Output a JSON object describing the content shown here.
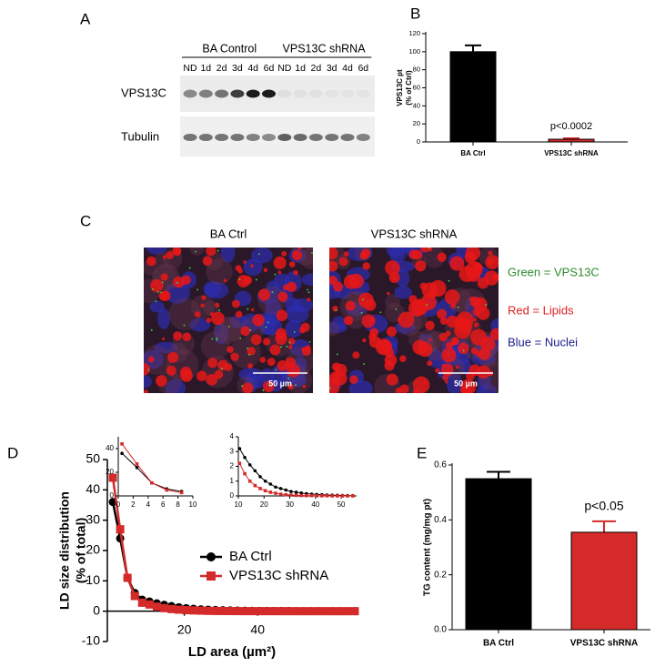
{
  "panel_labels": [
    "A",
    "B",
    "C",
    "D",
    "E"
  ],
  "blot": {
    "groups": [
      {
        "label": "BA Control",
        "lanes": [
          "ND",
          "1d",
          "2d",
          "3d",
          "4d",
          "6d"
        ]
      },
      {
        "label": "VPS13C shRNA",
        "lanes": [
          "ND",
          "1d",
          "2d",
          "3d",
          "4d",
          "6d"
        ]
      }
    ],
    "rows": [
      "VPS13C",
      "Tubulin"
    ]
  },
  "micrograph": {
    "panels": [
      "BA Ctrl",
      "VPS13C shRNA"
    ],
    "scale_bar": "50 µm",
    "legend": [
      {
        "text": "Green = VPS13C",
        "color": "#2e8b2e"
      },
      {
        "text": "Red = Lipids",
        "color": "#e02020"
      },
      {
        "text": "Blue = Nuclei",
        "color": "#1c1c8c"
      }
    ]
  },
  "chart_data": [
    {
      "type": "bar",
      "categories": [
        "BA Ctrl",
        "VPS13C shRNA"
      ],
      "values": [
        100,
        3
      ],
      "errors": [
        7,
        1
      ],
      "colors": [
        "#000000",
        "#d42a2a"
      ],
      "ylim": [
        0,
        120
      ],
      "yticks": [
        0,
        20,
        40,
        60,
        80,
        100,
        120
      ],
      "ylabel": [
        "VPS13C pt",
        "(% of Ctrl)"
      ],
      "annotation": "p<0.0002"
    },
    {
      "type": "line",
      "x": [
        0.5,
        2.5,
        4.5,
        6.5,
        8.5,
        10.5,
        12.5,
        14.5,
        16.5,
        18.5,
        20.5,
        22.5,
        24.5,
        26.5,
        28.5,
        30.5,
        32.5,
        34.5,
        36.5,
        38.5,
        40.5,
        42.5,
        44.5,
        46.5,
        48.5,
        50.5,
        52.5,
        54.5,
        56.5,
        58.5,
        60.5,
        62.5,
        64.5,
        66.5
      ],
      "series": [
        {
          "name": "BA Ctrl",
          "color": "#000000",
          "marker": "circle",
          "values": [
            36,
            24,
            11,
            6,
            3.8,
            3.2,
            2.6,
            2.1,
            1.7,
            1.3,
            1.0,
            0.8,
            0.6,
            0.5,
            0.4,
            0.3,
            0.25,
            0.2,
            0.15,
            0.12,
            0.1,
            0.08,
            0.06,
            0.05,
            0.04,
            0.03,
            0.02,
            0.02,
            0.01,
            0.01,
            0.01,
            0,
            0,
            0
          ]
        },
        {
          "name": "VPS13C shRNA",
          "color": "#d42a2a",
          "marker": "square",
          "values": [
            44,
            27,
            11,
            5,
            2.8,
            2.2,
            1.5,
            1.0,
            0.7,
            0.5,
            0.35,
            0.25,
            0.18,
            0.12,
            0.08,
            0.06,
            0.04,
            0.03,
            0.02,
            0.02,
            0.01,
            0.01,
            0.01,
            0,
            0,
            0,
            0,
            0,
            0,
            0,
            0,
            0,
            0,
            0
          ]
        }
      ],
      "xlim": [
        -1,
        67
      ],
      "xticks": [
        20,
        40
      ],
      "ylim": [
        -10,
        50
      ],
      "yticks": [
        -10,
        0,
        10,
        20,
        30,
        40,
        50
      ],
      "xlabel": "LD area (µm²)",
      "ylabel": [
        "LD size distribution",
        "(% of total)"
      ],
      "legend": "right",
      "insets": [
        {
          "xlim": [
            0,
            10
          ],
          "xticks": [
            0,
            2,
            4,
            6,
            8,
            10
          ],
          "ylim": [
            0,
            50
          ],
          "yticks": [
            0,
            20,
            40
          ]
        },
        {
          "xlim": [
            10,
            56
          ],
          "xticks": [
            10,
            20,
            30,
            40,
            50
          ],
          "ylim": [
            0,
            4
          ],
          "yticks": [
            0,
            1,
            2,
            3,
            4
          ]
        }
      ]
    },
    {
      "type": "bar",
      "categories": [
        "BA Ctrl",
        "VPS13C shRNA"
      ],
      "values": [
        0.55,
        0.355
      ],
      "errors": [
        0.025,
        0.04
      ],
      "colors": [
        "#000000",
        "#d42a2a"
      ],
      "ylim": [
        0,
        0.6
      ],
      "yticks": [
        {
          "value": 0,
          "label": "0.0"
        },
        0.2,
        0.4,
        0.6
      ],
      "ylabel": [
        "TG content (mg/mg pt)"
      ],
      "annotation": "p<0.05"
    }
  ]
}
